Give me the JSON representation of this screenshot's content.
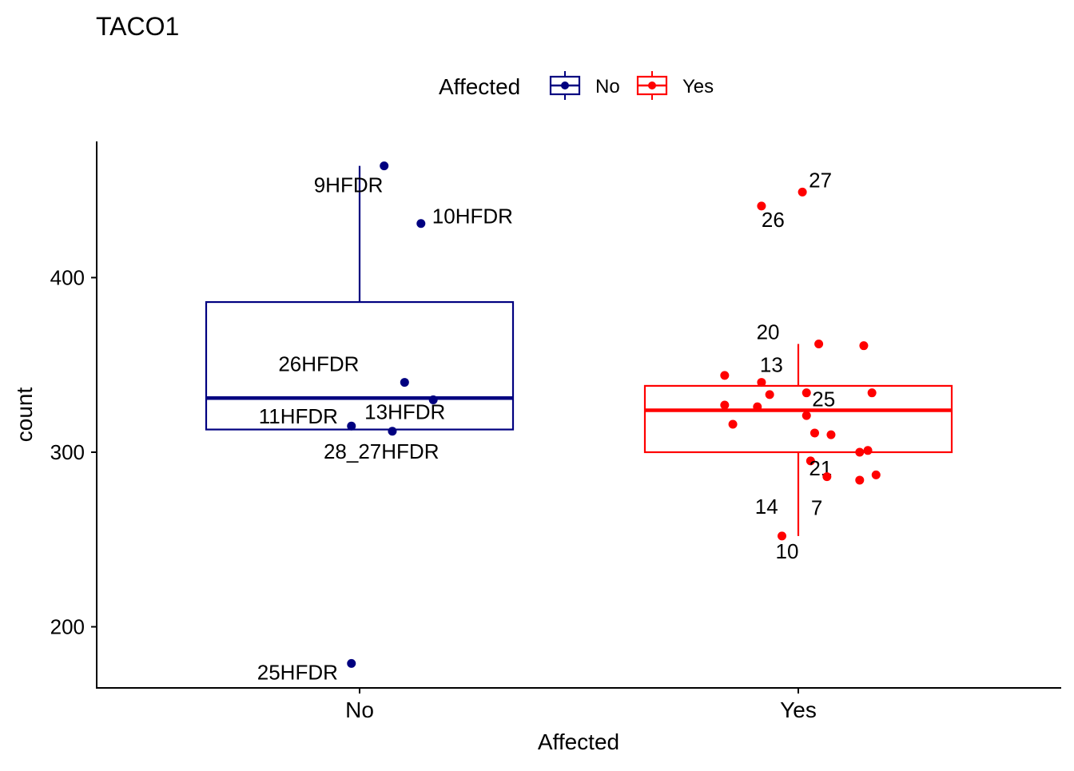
{
  "chart_data": {
    "type": "boxplot",
    "title": "TACO1",
    "xlabel": "Affected",
    "ylabel": "count",
    "categories": [
      "No",
      "Yes"
    ],
    "ylim": [
      165,
      478
    ],
    "yticks": [
      200,
      300,
      400
    ],
    "legend": {
      "title": "Affected",
      "position": "top",
      "entries": [
        {
          "label": "No",
          "color": "#000080"
        },
        {
          "label": "Yes",
          "color": "#ff0000"
        }
      ]
    },
    "series": [
      {
        "name": "No",
        "color": "#000080",
        "box": {
          "lower_whisker": 313,
          "q1": 313,
          "median": 331,
          "q3": 386,
          "upper_whisker": 464
        },
        "points": [
          {
            "x": 0.06,
            "y": 464,
            "label": "9HFDR"
          },
          {
            "x": 0.15,
            "y": 431,
            "label": "10HFDR"
          },
          {
            "x": 0.11,
            "y": 340,
            "label": "26HFDR"
          },
          {
            "x": 0.18,
            "y": 330,
            "label": "13HFDR"
          },
          {
            "x": -0.02,
            "y": 315,
            "label": "11HFDR"
          },
          {
            "x": 0.08,
            "y": 312,
            "label": "28_27HFDR"
          },
          {
            "x": -0.02,
            "y": 179,
            "label": "25HFDR"
          }
        ]
      },
      {
        "name": "Yes",
        "color": "#ff0000",
        "box": {
          "lower_whisker": 252,
          "q1": 300,
          "median": 324,
          "q3": 338,
          "upper_whisker": 362
        },
        "points": [
          {
            "x": 0.01,
            "y": 449,
            "label": "27"
          },
          {
            "x": -0.09,
            "y": 441,
            "label": "26"
          },
          {
            "x": 0.05,
            "y": 362,
            "label": "20"
          },
          {
            "x": 0.16,
            "y": 361,
            "label": ""
          },
          {
            "x": -0.18,
            "y": 344,
            "label": ""
          },
          {
            "x": -0.09,
            "y": 340,
            "label": "13"
          },
          {
            "x": 0.02,
            "y": 334,
            "label": "25"
          },
          {
            "x": -0.07,
            "y": 333,
            "label": ""
          },
          {
            "x": 0.18,
            "y": 334,
            "label": ""
          },
          {
            "x": -0.18,
            "y": 327,
            "label": ""
          },
          {
            "x": -0.1,
            "y": 326,
            "label": ""
          },
          {
            "x": 0.02,
            "y": 321,
            "label": ""
          },
          {
            "x": -0.16,
            "y": 316,
            "label": ""
          },
          {
            "x": 0.04,
            "y": 311,
            "label": ""
          },
          {
            "x": 0.08,
            "y": 310,
            "label": ""
          },
          {
            "x": 0.17,
            "y": 301,
            "label": ""
          },
          {
            "x": 0.15,
            "y": 300,
            "label": ""
          },
          {
            "x": 0.03,
            "y": 295,
            "label": "21"
          },
          {
            "x": 0.19,
            "y": 287,
            "label": ""
          },
          {
            "x": 0.07,
            "y": 286,
            "label": "7"
          },
          {
            "x": 0.15,
            "y": 284,
            "label": "14"
          },
          {
            "x": -0.04,
            "y": 252,
            "label": "10"
          }
        ]
      }
    ]
  }
}
